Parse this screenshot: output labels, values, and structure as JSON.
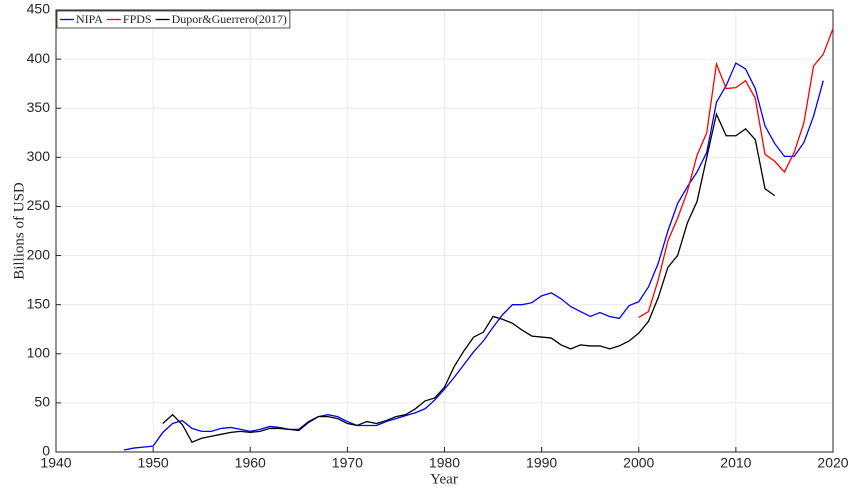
{
  "chart_data": {
    "type": "line",
    "xlabel": "Year",
    "ylabel": "Billions of USD",
    "xlim": [
      1940,
      2020
    ],
    "xticks": [
      1940,
      1950,
      1960,
      1970,
      1980,
      1990,
      2000,
      2010,
      2020
    ],
    "ylim": [
      0,
      450
    ],
    "yticks": [
      0,
      50,
      100,
      150,
      200,
      250,
      300,
      350,
      400,
      450
    ],
    "grid": true,
    "legend": "upper left",
    "series": [
      {
        "name": "NIPA",
        "color": "#0000ff",
        "x": [
          1947,
          1948,
          1949,
          1950,
          1951,
          1952,
          1953,
          1954,
          1955,
          1956,
          1957,
          1958,
          1959,
          1960,
          1961,
          1962,
          1963,
          1964,
          1965,
          1966,
          1967,
          1968,
          1969,
          1970,
          1971,
          1972,
          1973,
          1974,
          1975,
          1976,
          1977,
          1978,
          1979,
          1980,
          1981,
          1982,
          1983,
          1984,
          1985,
          1986,
          1987,
          1988,
          1989,
          1990,
          1991,
          1992,
          1993,
          1994,
          1995,
          1996,
          1997,
          1998,
          1999,
          2000,
          2001,
          2002,
          2003,
          2004,
          2005,
          2006,
          2007,
          2008,
          2009,
          2010,
          2011,
          2012,
          2013,
          2014,
          2015,
          2016,
          2017,
          2018,
          2019
        ],
        "values": [
          2,
          4,
          5,
          6,
          20,
          29,
          32,
          24,
          21,
          21,
          24,
          25,
          23,
          21,
          23,
          26,
          25,
          23,
          23,
          31,
          36,
          38,
          36,
          31,
          27,
          27,
          27,
          31,
          34,
          37,
          40,
          44,
          53,
          64,
          76,
          89,
          102,
          113,
          127,
          140,
          150,
          150,
          152,
          159,
          162,
          156,
          148,
          143,
          138,
          142,
          138,
          136,
          149,
          153,
          168,
          192,
          225,
          253,
          270,
          285,
          305,
          356,
          373,
          396,
          390,
          370,
          332,
          314,
          301,
          301,
          315,
          342,
          378
        ]
      },
      {
        "name": "FPDS",
        "color": "#ff0000",
        "x": [
          2000,
          2001,
          2002,
          2003,
          2004,
          2005,
          2006,
          2007,
          2008,
          2009,
          2010,
          2011,
          2012,
          2013,
          2014,
          2015,
          2016,
          2017,
          2018,
          2019,
          2020
        ],
        "values": [
          137,
          143,
          175,
          215,
          238,
          265,
          302,
          325,
          395,
          370,
          371,
          378,
          360,
          303,
          296,
          285,
          305,
          335,
          393,
          405,
          431
        ]
      },
      {
        "name": "Dupor&Guerrero(2017)",
        "color": "#000000",
        "x": [
          1951,
          1952,
          1953,
          1954,
          1955,
          1956,
          1957,
          1958,
          1959,
          1960,
          1961,
          1962,
          1963,
          1964,
          1965,
          1966,
          1967,
          1968,
          1969,
          1970,
          1971,
          1972,
          1973,
          1974,
          1975,
          1976,
          1977,
          1978,
          1979,
          1980,
          1981,
          1982,
          1983,
          1984,
          1985,
          1986,
          1987,
          1988,
          1989,
          1990,
          1991,
          1992,
          1993,
          1994,
          1995,
          1996,
          1997,
          1998,
          1999,
          2000,
          2001,
          2002,
          2003,
          2004,
          2005,
          2006,
          2007,
          2008,
          2009,
          2010,
          2011,
          2012,
          2013,
          2014
        ],
        "values": [
          29,
          38,
          28,
          10,
          14,
          16,
          18,
          20,
          21,
          20,
          21,
          24,
          24,
          23,
          22,
          30,
          36,
          36,
          34,
          29,
          27,
          31,
          29,
          32,
          36,
          38,
          44,
          52,
          55,
          66,
          87,
          103,
          117,
          122,
          138,
          135,
          131,
          124,
          118,
          117,
          116,
          109,
          105,
          109,
          108,
          108,
          105,
          108,
          113,
          121,
          133,
          157,
          188,
          200,
          233,
          255,
          300,
          344,
          322,
          322,
          329,
          318,
          268,
          261
        ]
      }
    ]
  }
}
